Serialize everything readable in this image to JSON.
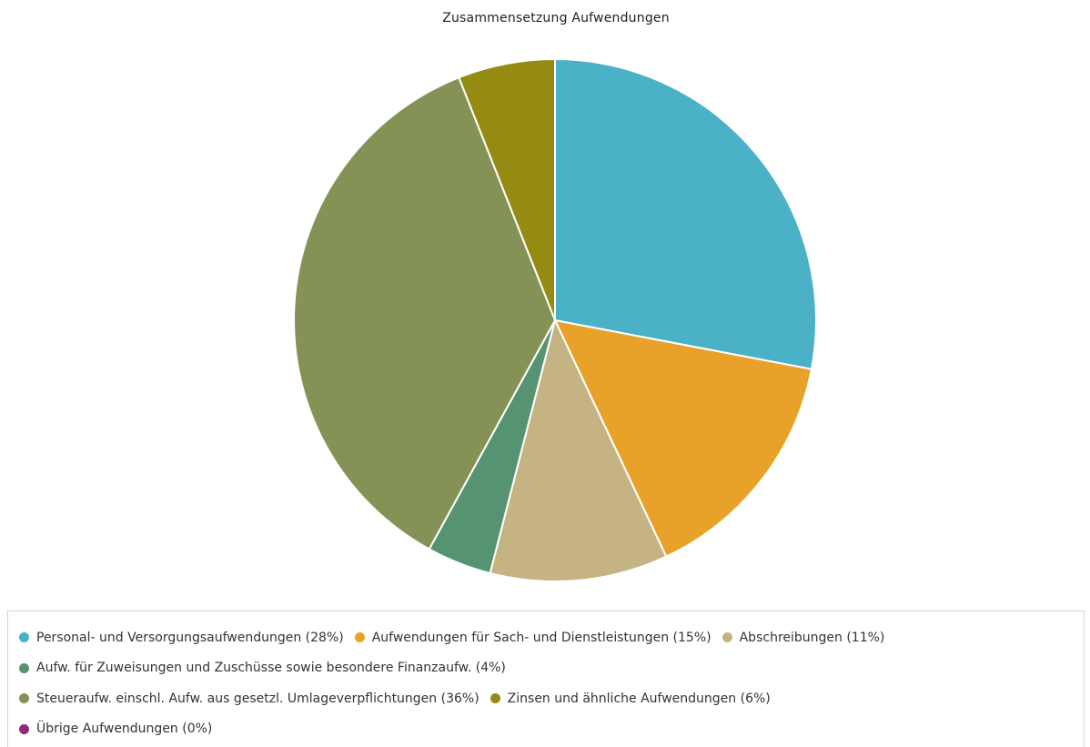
{
  "chart_data": {
    "type": "pie",
    "title": "Zusammensetzung  Aufwendungen",
    "start_angle_deg": 0,
    "direction": "clockwise",
    "slices": [
      {
        "label": "Personal- und Versorgungsaufwendungen (28%)",
        "value": 28,
        "color": "#4ab1c6"
      },
      {
        "label": "Aufwendungen für Sach- und Dienstleistungen (15%)",
        "value": 15,
        "color": "#e8a22a"
      },
      {
        "label": "Abschreibungen (11%)",
        "value": 11,
        "color": "#c5b383"
      },
      {
        "label": "Aufw. für Zuweisungen und Zuschüsse sowie besondere Finanzaufw. (4%)",
        "value": 4,
        "color": "#569373"
      },
      {
        "label": "Steueraufw. einschl. Aufw. aus gesetzl. Umlageverpflichtungen (36%)",
        "value": 36,
        "color": "#849355"
      },
      {
        "label": "Zinsen und ähnliche Aufwendungen (6%)",
        "value": 6,
        "color": "#968b12"
      },
      {
        "label": "Übrige Aufwendungen (0%)",
        "value": 0,
        "color": "#8b2c7e"
      }
    ],
    "legend_position": "bottom",
    "legend_rows": [
      [
        0,
        1,
        2
      ],
      [
        3
      ],
      [
        4,
        5
      ],
      [
        6
      ]
    ]
  }
}
